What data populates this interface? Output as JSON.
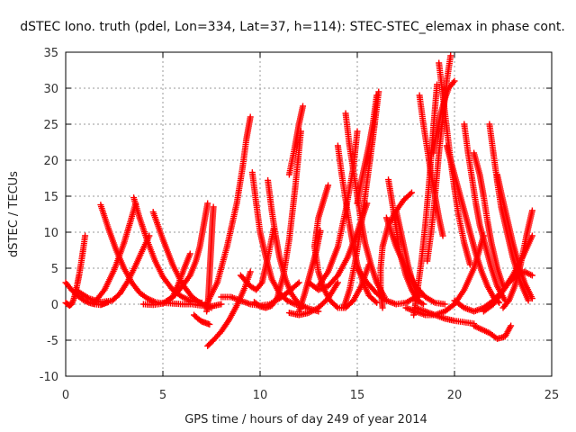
{
  "chart_data": {
    "type": "scatter",
    "title": "dSTEC Iono. truth (pdel, Lon=334, Lat=37, h=114): STEC-STEC_elemax in phase cont.",
    "xlabel": "GPS time / hours of day 249 of year 2014",
    "ylabel": "dSTEC  / TECUs",
    "xlim": [
      0,
      25
    ],
    "ylim": [
      -10,
      35
    ],
    "xticks": [
      0,
      5,
      10,
      15,
      20,
      25
    ],
    "yticks": [
      -10,
      -5,
      0,
      5,
      10,
      15,
      20,
      25,
      30,
      35
    ],
    "grid": true,
    "legend": "none",
    "marker": "plus",
    "color": "#ff0000",
    "series": [
      {
        "x": [
          0.0,
          0.1,
          0.2,
          0.3,
          0.4,
          0.5,
          0.6,
          0.7,
          0.8,
          0.9,
          1.0
        ],
        "values": [
          0.2,
          0.0,
          -0.2,
          0.0,
          0.6,
          1.5,
          2.8,
          4.2,
          5.8,
          7.6,
          9.5
        ]
      },
      {
        "x": [
          0.0,
          0.3,
          0.6,
          0.9,
          1.2,
          1.5,
          1.8,
          2.0,
          2.2
        ],
        "values": [
          3.0,
          2.0,
          1.2,
          0.6,
          0.2,
          0.0,
          -0.1,
          0.1,
          0.3
        ]
      },
      {
        "x": [
          1.8,
          2.2,
          2.6,
          3.0,
          3.4,
          3.8,
          4.2,
          4.6,
          5.0
        ],
        "values": [
          13.8,
          10.5,
          7.5,
          5.0,
          3.0,
          1.6,
          0.8,
          0.3,
          0.1
        ]
      },
      {
        "x": [
          0.5,
          1.2,
          1.8,
          2.4,
          2.8,
          3.2,
          3.6,
          4.0,
          4.3
        ],
        "values": [
          2.0,
          0.8,
          0.3,
          0.5,
          1.5,
          3.2,
          5.4,
          7.8,
          9.5
        ]
      },
      {
        "x": [
          3.5,
          3.8,
          4.2,
          4.6,
          5.0,
          5.5,
          6.0,
          6.5,
          7.0
        ],
        "values": [
          14.8,
          12.0,
          8.8,
          6.0,
          3.8,
          2.0,
          1.0,
          0.4,
          0.2
        ]
      },
      {
        "x": [
          1.5,
          2.0,
          2.5,
          3.0,
          3.3,
          3.6
        ],
        "values": [
          0.3,
          2.0,
          4.8,
          8.5,
          11.2,
          14.0
        ]
      },
      {
        "x": [
          4.5,
          5.0,
          5.5,
          6.0,
          6.5,
          7.0,
          7.5
        ],
        "values": [
          12.8,
          9.0,
          5.5,
          2.8,
          1.0,
          0.0,
          -0.5
        ]
      },
      {
        "x": [
          4.0,
          4.5,
          5.0,
          5.5,
          5.8,
          6.1,
          6.4
        ],
        "values": [
          0.0,
          -0.1,
          0.1,
          1.0,
          2.8,
          5.0,
          7.0
        ]
      },
      {
        "x": [
          5.0,
          5.5,
          6.0,
          6.5,
          7.0,
          7.5,
          8.0
        ],
        "values": [
          0.2,
          0.1,
          0.0,
          0.0,
          -0.2,
          -0.3,
          0.0
        ]
      },
      {
        "x": [
          7.3,
          7.2,
          7.1,
          7.0,
          6.9,
          6.7,
          6.4,
          6.0,
          5.6,
          5.2
        ],
        "values": [
          14.0,
          12.5,
          11.0,
          9.5,
          8.0,
          6.0,
          4.0,
          2.5,
          1.2,
          0.4
        ]
      },
      {
        "x": [
          7.6,
          7.55,
          7.5,
          7.45,
          7.4,
          7.35,
          7.3,
          7.25
        ],
        "values": [
          13.5,
          11.5,
          9.0,
          6.5,
          4.0,
          1.5,
          -0.5,
          -1.0
        ]
      },
      {
        "x": [
          6.6,
          6.8,
          7.0,
          7.2,
          7.4
        ],
        "values": [
          -1.5,
          -2.0,
          -2.4,
          -2.6,
          -2.8
        ]
      },
      {
        "x": [
          7.3,
          7.8,
          8.3,
          8.8,
          9.1,
          9.3,
          9.5
        ],
        "values": [
          0.3,
          3.0,
          8.0,
          14.0,
          19.0,
          23.0,
          26.0
        ]
      },
      {
        "x": [
          7.3,
          7.6,
          8.0,
          8.4,
          8.8,
          9.2,
          9.5
        ],
        "values": [
          -5.8,
          -5.0,
          -3.8,
          -2.2,
          -0.2,
          2.2,
          4.5
        ]
      },
      {
        "x": [
          8.0,
          8.5,
          9.0,
          9.5,
          10.0,
          10.5,
          11.0,
          11.5,
          12.0
        ],
        "values": [
          1.0,
          1.0,
          0.5,
          0.0,
          -0.2,
          0.0,
          0.8,
          1.8,
          3.0
        ]
      },
      {
        "x": [
          9.6,
          9.8,
          10.0,
          10.3,
          10.6,
          11.0,
          11.4,
          11.8,
          12.2
        ],
        "values": [
          18.3,
          14.0,
          10.0,
          6.5,
          3.5,
          1.5,
          0.5,
          0.0,
          -0.3
        ]
      },
      {
        "x": [
          10.4,
          10.6,
          10.8,
          11.0,
          11.3,
          11.6,
          12.0,
          12.5,
          13.0
        ],
        "values": [
          17.2,
          13.0,
          9.5,
          6.5,
          3.5,
          1.5,
          0.0,
          -0.6,
          -1.0
        ]
      },
      {
        "x": [
          9.0,
          9.5,
          9.8,
          10.1,
          10.4,
          10.7
        ],
        "values": [
          4.0,
          2.5,
          2.0,
          3.0,
          6.5,
          10.5
        ]
      },
      {
        "x": [
          9.7,
          10.0,
          10.3,
          10.6,
          10.9,
          11.2,
          11.5,
          11.8,
          12.1
        ],
        "values": [
          0.3,
          -0.3,
          -0.5,
          -0.2,
          1.0,
          4.0,
          9.0,
          16.0,
          24.0
        ]
      },
      {
        "x": [
          12.2,
          12.0,
          11.8,
          11.5
        ],
        "values": [
          27.5,
          25.0,
          22.0,
          18.0
        ]
      },
      {
        "x": [
          11.5,
          12.0,
          12.5,
          13.0,
          13.5,
          14.0
        ],
        "values": [
          -1.2,
          -1.5,
          -1.2,
          -0.5,
          0.8,
          3.0
        ]
      },
      {
        "x": [
          12.0,
          12.3,
          12.6,
          12.9,
          13.1
        ],
        "values": [
          -1.0,
          1.5,
          4.5,
          7.5,
          10.2
        ]
      },
      {
        "x": [
          13.5,
          13.0,
          12.8,
          13.0,
          13.3,
          13.6,
          14.0,
          14.4,
          14.8,
          15.2,
          15.6
        ],
        "values": [
          16.5,
          12.0,
          8.0,
          4.5,
          2.0,
          0.5,
          -0.5,
          -0.5,
          0.5,
          2.5,
          5.5
        ]
      },
      {
        "x": [
          14.0,
          14.2,
          14.4,
          14.6,
          14.8,
          15.0,
          15.3,
          15.6,
          16.0
        ],
        "values": [
          22.0,
          18.0,
          14.5,
          11.0,
          8.0,
          5.5,
          3.0,
          1.2,
          0.2
        ]
      },
      {
        "x": [
          14.4,
          14.6,
          14.8,
          15.0,
          15.2,
          15.4,
          15.7,
          16.0,
          16.4
        ],
        "values": [
          26.5,
          22.0,
          18.5,
          15.0,
          11.5,
          8.5,
          5.5,
          3.0,
          1.0
        ]
      },
      {
        "x": [
          12.5,
          13.0,
          13.5,
          14.0,
          14.5,
          15.0,
          15.5
        ],
        "values": [
          3.0,
          2.0,
          2.5,
          4.0,
          6.5,
          10.0,
          14.0
        ]
      },
      {
        "x": [
          13.0,
          13.5,
          14.0,
          14.4,
          14.8,
          15.0
        ],
        "values": [
          2.5,
          4.5,
          8.0,
          13.0,
          19.0,
          24.0
        ]
      },
      {
        "x": [
          14.3,
          14.6,
          14.9,
          15.2,
          15.5,
          15.8,
          16.1
        ],
        "values": [
          -0.5,
          2.0,
          6.0,
          11.0,
          17.0,
          23.0,
          29.5
        ]
      },
      {
        "x": [
          15.0,
          15.2,
          15.4,
          15.6,
          15.8,
          16.0
        ],
        "values": [
          14.0,
          17.0,
          19.5,
          22.0,
          25.0,
          29.0
        ]
      },
      {
        "x": [
          16.3,
          16.2,
          16.2,
          16.3,
          16.6,
          17.0,
          17.4,
          17.8
        ],
        "values": [
          -0.5,
          2.0,
          5.0,
          8.0,
          11.0,
          13.0,
          14.5,
          15.5
        ]
      },
      {
        "x": [
          16.6,
          16.8,
          17.0,
          17.2,
          17.5,
          17.8,
          18.1,
          18.4
        ],
        "values": [
          17.3,
          14.0,
          10.5,
          7.0,
          4.0,
          2.0,
          0.5,
          0.0
        ]
      },
      {
        "x": [
          17.0,
          17.2,
          17.4,
          17.6,
          17.8,
          18.0,
          18.2
        ],
        "values": [
          13.0,
          10.5,
          8.0,
          5.5,
          3.5,
          2.0,
          1.0
        ]
      },
      {
        "x": [
          17.9,
          18.1,
          18.3,
          18.5,
          18.7,
          18.9,
          19.1
        ],
        "values": [
          -1.5,
          2.0,
          6.0,
          11.0,
          17.0,
          24.0,
          30.5
        ]
      },
      {
        "x": [
          18.2,
          18.4,
          18.6,
          18.8,
          19.0,
          19.2,
          19.4
        ],
        "values": [
          29.0,
          25.0,
          21.5,
          18.0,
          15.0,
          12.0,
          9.5
        ]
      },
      {
        "x": [
          18.6,
          18.8,
          19.0,
          19.2,
          19.4,
          19.6,
          19.8
        ],
        "values": [
          6.0,
          10.0,
          15.0,
          21.0,
          26.0,
          31.0,
          34.5
        ]
      },
      {
        "x": [
          19.2,
          19.4,
          19.6,
          19.8,
          20.0,
          20.2,
          20.5,
          20.8
        ],
        "values": [
          33.5,
          29.0,
          24.5,
          20.0,
          16.0,
          12.5,
          8.5,
          5.5
        ]
      },
      {
        "x": [
          18.9,
          19.1,
          19.3,
          19.5,
          19.7,
          20.0
        ],
        "values": [
          21.0,
          24.0,
          26.5,
          28.5,
          30.0,
          31.0
        ]
      },
      {
        "x": [
          19.6,
          19.9,
          20.2,
          20.5,
          20.8,
          21.1,
          21.4,
          21.7,
          22.0,
          22.3
        ],
        "values": [
          22.0,
          19.0,
          16.0,
          13.0,
          10.0,
          7.0,
          4.5,
          2.5,
          1.0,
          0.2
        ]
      },
      {
        "x": [
          20.5,
          20.7,
          20.9,
          21.1,
          21.3,
          21.6,
          21.9,
          22.2,
          22.6
        ],
        "values": [
          25.0,
          21.0,
          17.5,
          14.0,
          11.0,
          8.0,
          5.0,
          2.5,
          0.5
        ]
      },
      {
        "x": [
          21.0,
          21.3,
          21.5,
          21.7,
          21.9,
          22.2,
          22.5
        ],
        "values": [
          21.0,
          18.0,
          15.0,
          11.5,
          8.5,
          5.0,
          2.5
        ]
      },
      {
        "x": [
          21.8,
          22.0,
          22.2,
          22.4,
          22.7,
          23.0,
          23.4,
          23.8
        ],
        "values": [
          25.0,
          21.0,
          17.0,
          13.5,
          10.0,
          6.5,
          3.0,
          0.5
        ]
      },
      {
        "x": [
          22.2,
          22.4,
          22.7,
          23.0,
          23.3,
          23.6,
          24.0
        ],
        "values": [
          18.0,
          15.5,
          12.0,
          8.5,
          5.5,
          3.0,
          0.8
        ]
      },
      {
        "x": [
          22.5,
          22.8,
          23.1,
          23.4,
          23.7,
          24.0
        ],
        "values": [
          -0.5,
          0.5,
          2.5,
          5.5,
          9.5,
          13.0
        ]
      },
      {
        "x": [
          20.0,
          20.5,
          21.0,
          21.5,
          22.0,
          22.5,
          23.0,
          23.5,
          24.0
        ],
        "values": [
          0.5,
          -0.5,
          -1.0,
          -0.5,
          0.5,
          2.0,
          4.0,
          6.5,
          9.5
        ]
      },
      {
        "x": [
          21.5,
          22.0,
          22.4,
          22.8,
          23.2,
          23.6,
          24.0
        ],
        "values": [
          -1.0,
          0.0,
          1.5,
          3.0,
          4.0,
          4.5,
          4.0
        ]
      },
      {
        "x": [
          17.5,
          18.0,
          18.5,
          19.0,
          19.5,
          20.0,
          20.5,
          21.0,
          21.5
        ],
        "values": [
          -0.5,
          -1.0,
          -1.5,
          -1.5,
          -1.0,
          0.0,
          2.0,
          5.0,
          9.5
        ]
      },
      {
        "x": [
          18.0,
          18.5,
          19.0,
          19.5,
          20.0,
          20.5,
          21.0
        ],
        "values": [
          -0.5,
          -1.0,
          -1.5,
          -2.0,
          -2.3,
          -2.5,
          -2.7
        ]
      },
      {
        "x": [
          21.0,
          21.4,
          21.8,
          22.2,
          22.6,
          22.9
        ],
        "values": [
          -3.0,
          -3.5,
          -4.0,
          -4.8,
          -4.5,
          -3.0
        ]
      },
      {
        "x": [
          15.0,
          15.5,
          16.0,
          16.5,
          17.0,
          17.5,
          18.0
        ],
        "values": [
          5.0,
          3.0,
          1.5,
          0.5,
          0.0,
          0.2,
          1.0
        ]
      },
      {
        "x": [
          16.5,
          17.0,
          17.5,
          18.0,
          18.5,
          19.0,
          19.5
        ],
        "values": [
          12.0,
          8.0,
          5.0,
          2.5,
          1.0,
          0.2,
          0.0
        ]
      }
    ]
  }
}
